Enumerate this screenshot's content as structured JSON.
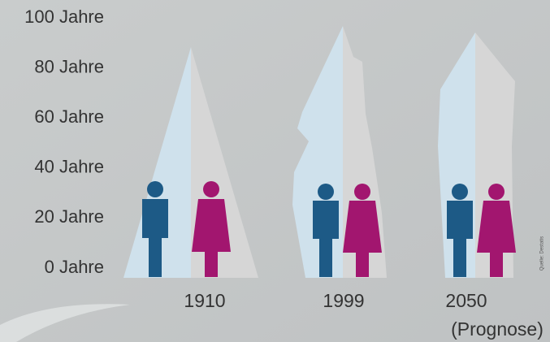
{
  "chart_data": {
    "type": "population_pyramid",
    "categories": [
      "1910",
      "1999",
      "2050"
    ],
    "annotation": "(Prognose)",
    "source": "Quelle: Destatis",
    "ylim": [
      0,
      100
    ],
    "yticks": [
      {
        "value": 0,
        "label": "0 Jahre"
      },
      {
        "value": 20,
        "label": "20 Jahre"
      },
      {
        "value": 40,
        "label": "40 Jahre"
      },
      {
        "value": 60,
        "label": "60 Jahre"
      },
      {
        "value": 80,
        "label": "80 Jahre"
      },
      {
        "value": 100,
        "label": "100 Jahre"
      }
    ]
  }
}
